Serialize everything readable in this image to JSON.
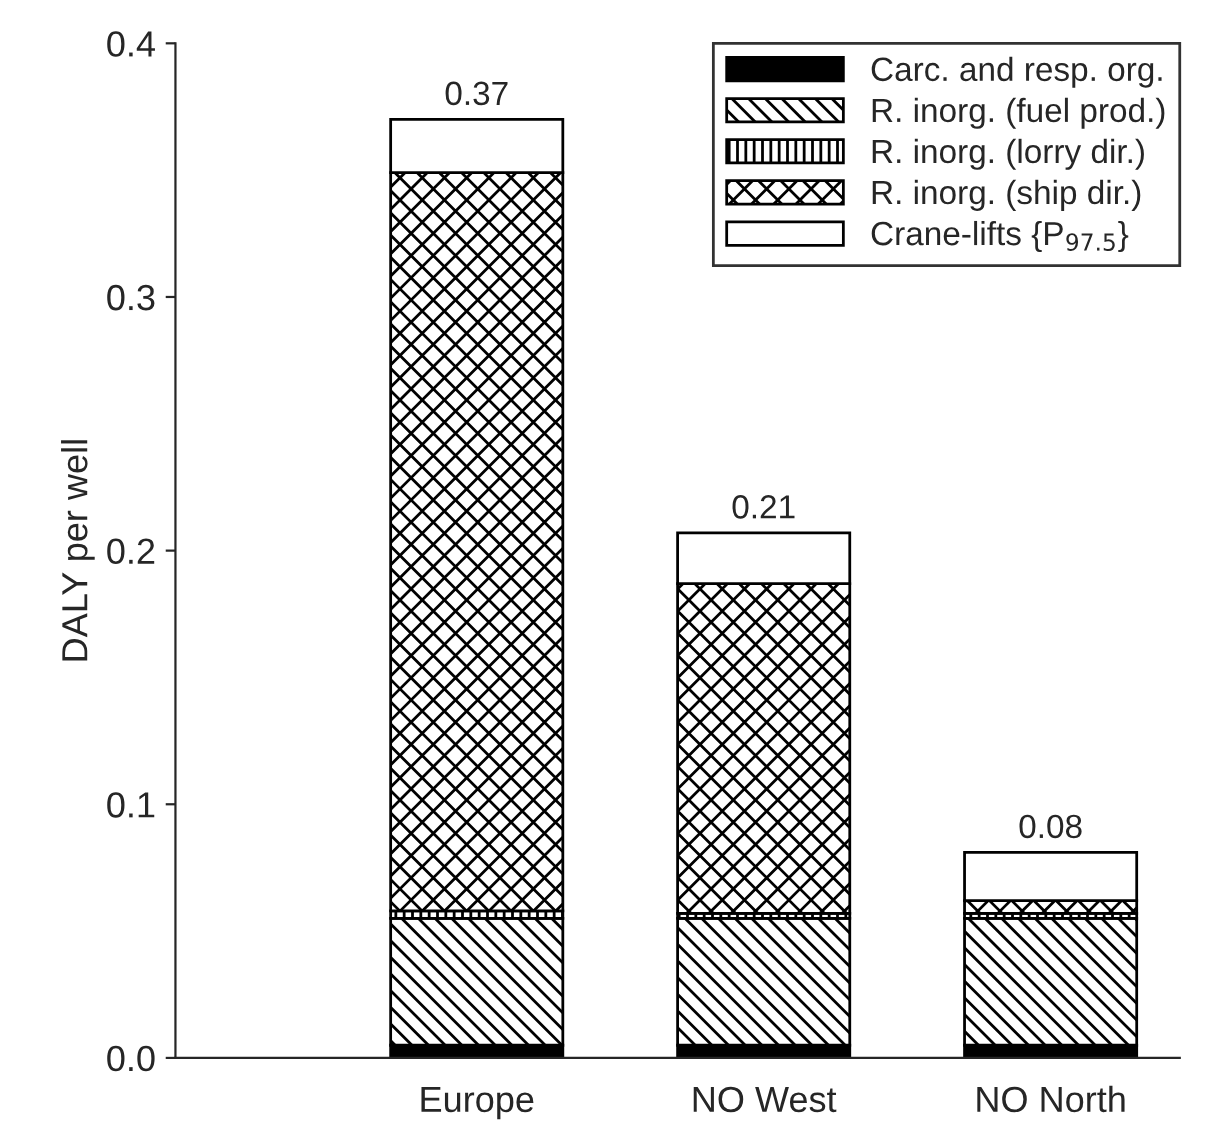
{
  "chart_data": {
    "type": "bar",
    "ylabel": "DALY per well",
    "categories": [
      "Europe",
      "NO West",
      "NO North"
    ],
    "stacked": true,
    "series": [
      {
        "name": "Carc. and resp. org.",
        "color": "#000000",
        "values": [
          0.005,
          0.005,
          0.005
        ]
      },
      {
        "name": "R. inorg. (fuel prod.)",
        "color": "#000000",
        "values": [
          0.05,
          0.05,
          0.05
        ]
      },
      {
        "name": "R. inorg. (lorry dir.)",
        "color": "#000000",
        "values": [
          0.003,
          0.002,
          0.002
        ]
      },
      {
        "name": "R. inorg. (ship dir.)",
        "color": "#000000",
        "values": [
          0.291,
          0.13,
          0.005
        ]
      },
      {
        "name": "Crane-lifts {P$_{97.5}$}",
        "color": "#ffffff",
        "values": [
          0.021,
          0.02,
          0.019
        ]
      }
    ],
    "totals": [
      "0.37",
      "0.21",
      "0.08"
    ],
    "ylim": [
      0,
      0.4
    ],
    "yticks": [
      {
        "value": 0,
        "label": "0.0"
      },
      0.1,
      0.2,
      0.3,
      0.4
    ],
    "grid": false,
    "legend": "top right"
  }
}
